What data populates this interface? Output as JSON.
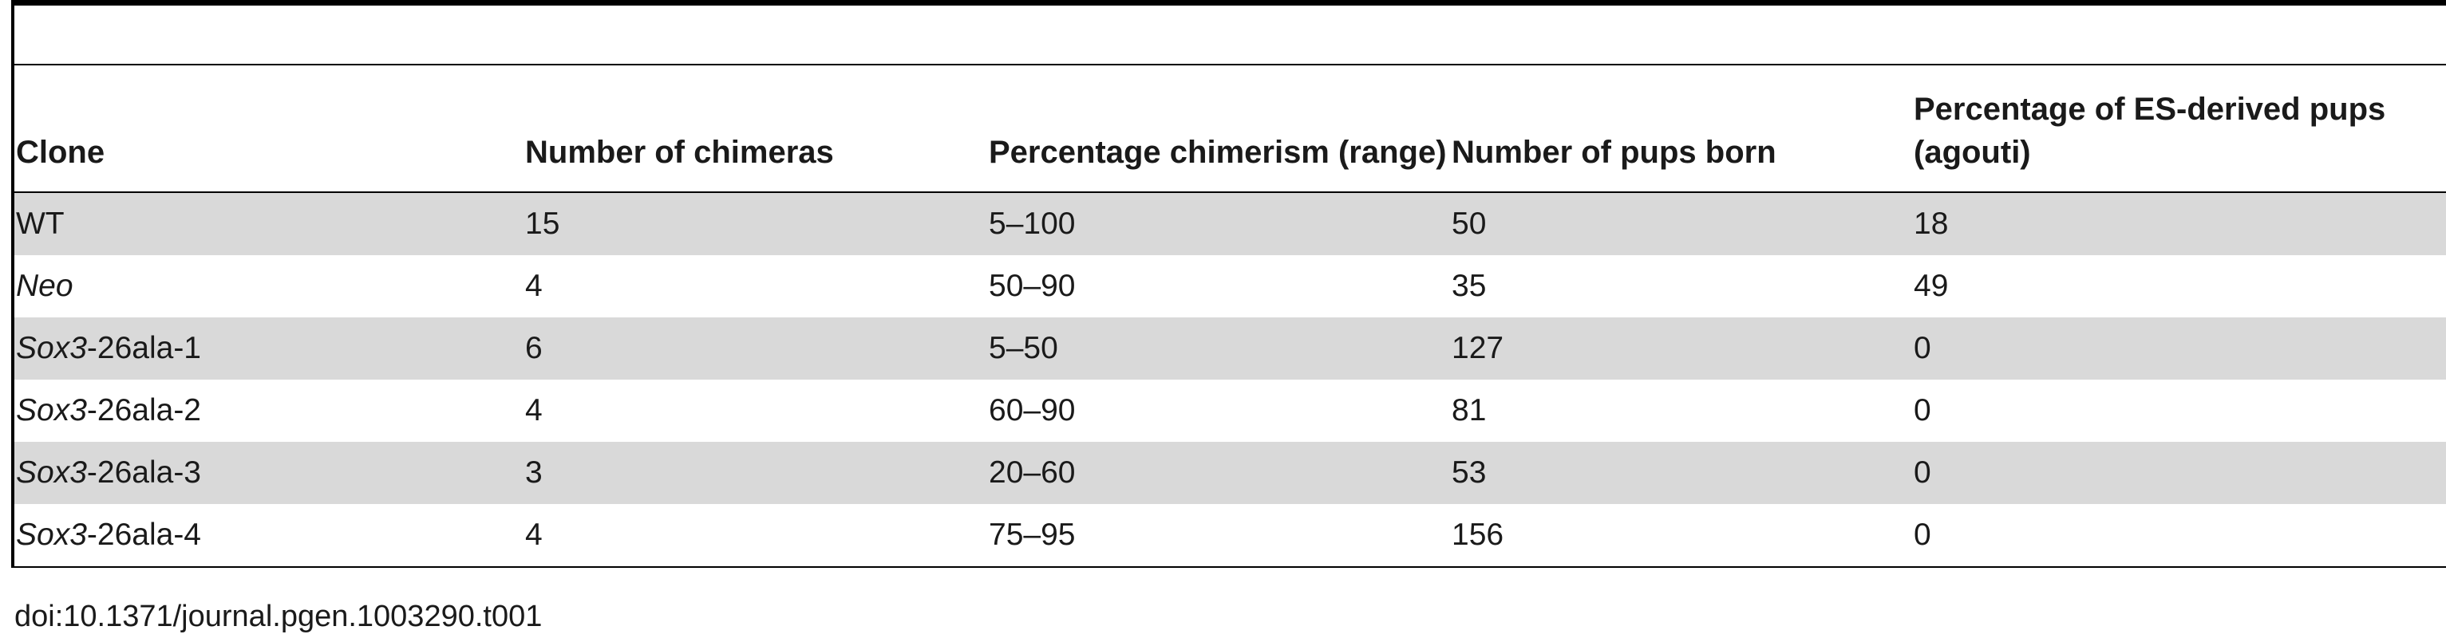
{
  "table": {
    "headers": {
      "clone": "Clone",
      "chimeras": "Number of chimeras",
      "chimerism": "Percentage chimerism (range)",
      "pups": "Number of pups born",
      "es_pups": "Percentage of ES-derived pups (agouti)"
    },
    "rows": [
      {
        "clone_italic": "",
        "clone_rest": "WT",
        "chimeras": "15",
        "chimerism": "5–100",
        "pups": "50",
        "es_pups": "18"
      },
      {
        "clone_italic": "Neo",
        "clone_rest": "",
        "chimeras": "4",
        "chimerism": "50–90",
        "pups": "35",
        "es_pups": "49"
      },
      {
        "clone_italic": "Sox3",
        "clone_rest": "-26ala-1",
        "chimeras": "6",
        "chimerism": "5–50",
        "pups": "127",
        "es_pups": "0"
      },
      {
        "clone_italic": "Sox3",
        "clone_rest": "-26ala-2",
        "chimeras": "4",
        "chimerism": "60–90",
        "pups": "81",
        "es_pups": "0"
      },
      {
        "clone_italic": "Sox3",
        "clone_rest": "-26ala-3",
        "chimeras": "3",
        "chimerism": "20–60",
        "pups": "53",
        "es_pups": "0"
      },
      {
        "clone_italic": "Sox3",
        "clone_rest": "-26ala-4",
        "chimeras": "4",
        "chimerism": "75–95",
        "pups": "156",
        "es_pups": "0"
      }
    ]
  },
  "footer": {
    "doi": "doi:10.1371/journal.pgen.1003290.t001"
  }
}
